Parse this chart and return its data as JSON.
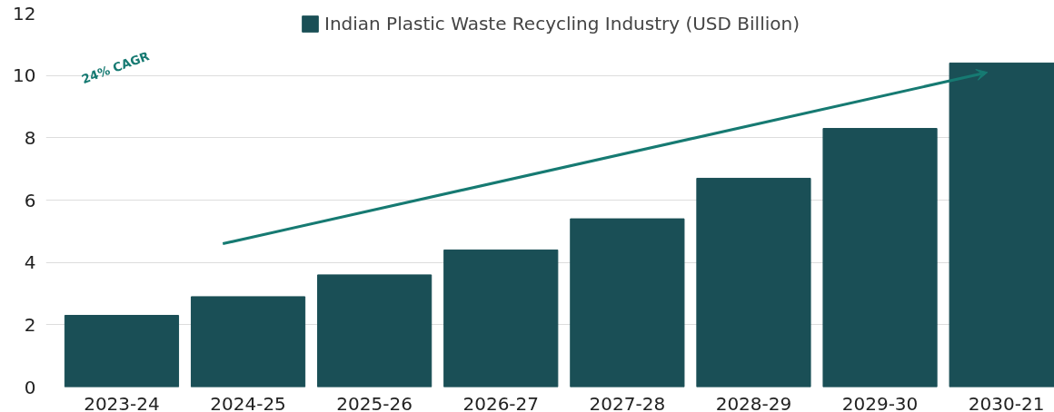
{
  "chart_data": {
    "type": "bar",
    "categories": [
      "2023-24",
      "2024-25",
      "2025-26",
      "2026-27",
      "2027-28",
      "2028-29",
      "2029-30",
      "2030-21"
    ],
    "series": [
      {
        "name": "Indian Plastic Waste Recycling Industry (USD Billion)",
        "color": "#1a4f56",
        "values": [
          2.3,
          2.9,
          3.6,
          4.4,
          5.4,
          6.7,
          8.3,
          10.4
        ]
      }
    ],
    "ylim": [
      0,
      12
    ],
    "yticks": [
      0,
      2,
      4,
      6,
      8,
      10,
      12
    ],
    "grid": "y",
    "legend": "top",
    "annotations": [
      "24% CAGR"
    ]
  }
}
